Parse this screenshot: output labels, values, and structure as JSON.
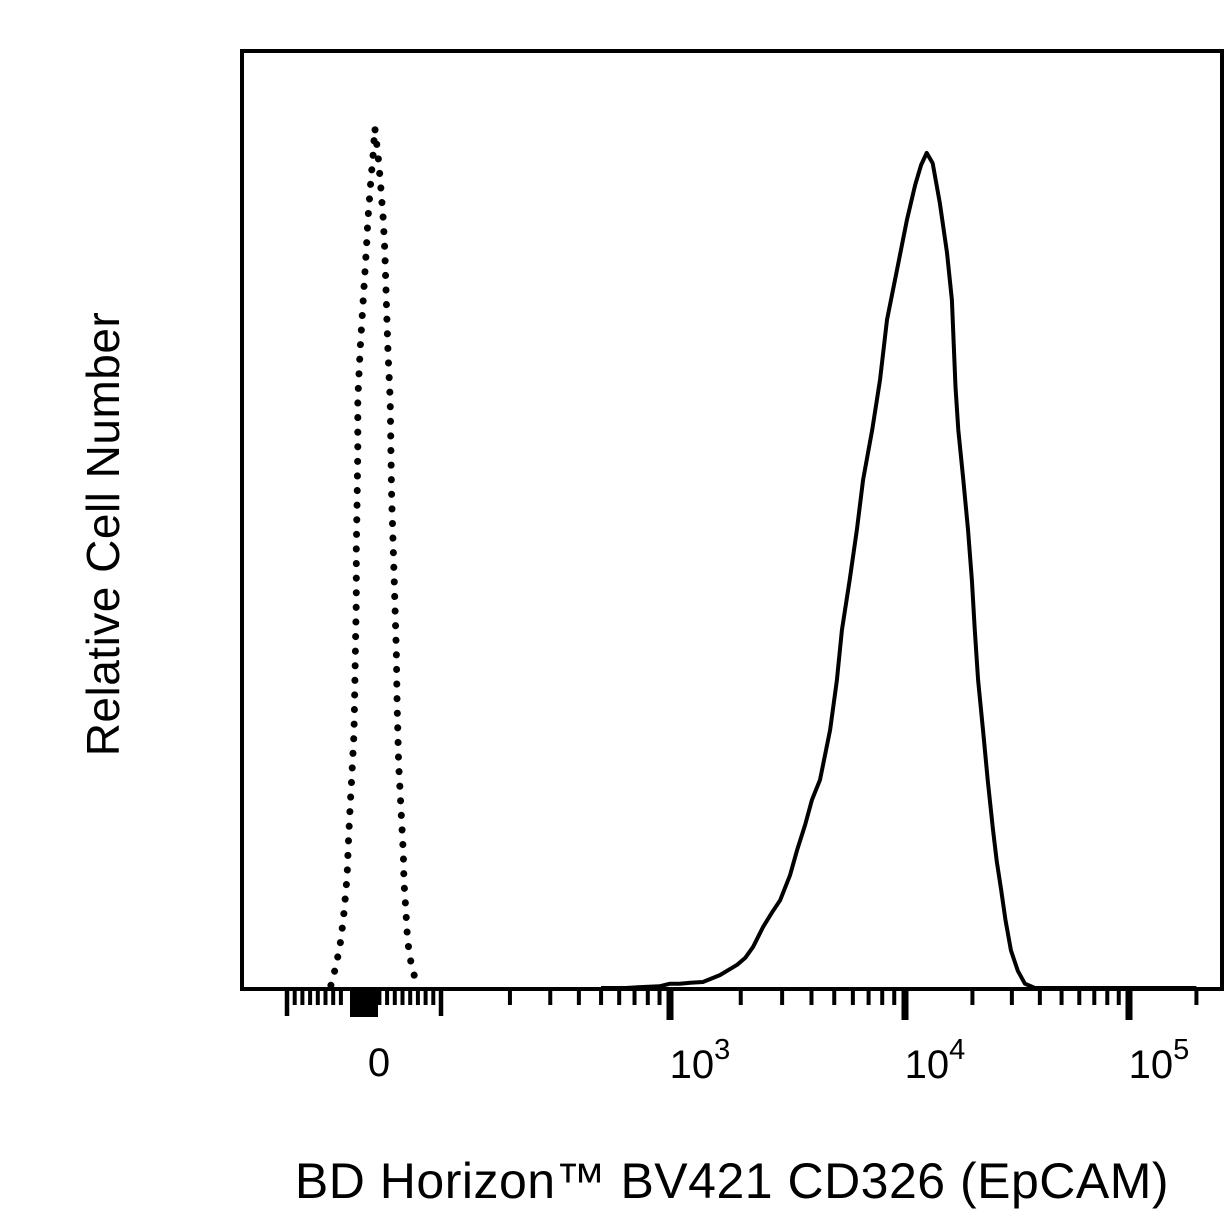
{
  "figure": {
    "background": "#ffffff",
    "foreground": "#000000"
  },
  "chart_data": {
    "type": "line",
    "subtype": "flow-cytometry-histogram",
    "title": "",
    "xlabel": "BD Horizon™ BV421 CD326 (EpCAM)",
    "ylabel": "Relative Cell Number",
    "x_scale": "biexponential-logicle",
    "x_axis": {
      "xlim": [
        -160,
        240000
      ],
      "labeled_ticks": [
        {
          "value": 0,
          "text": "0"
        },
        {
          "value": 1000,
          "base": "10",
          "exp": "3"
        },
        {
          "value": 10000,
          "base": "10",
          "exp": "4"
        },
        {
          "value": 100000,
          "base": "10",
          "exp": "5"
        }
      ],
      "medium_ticks": [
        -100,
        100
      ],
      "minor_ticks": [
        -90,
        -80,
        -70,
        -60,
        -50,
        -40,
        -30,
        20,
        30,
        40,
        50,
        60,
        70,
        80,
        90,
        200,
        300,
        400,
        500,
        600,
        700,
        800,
        900,
        2000,
        3000,
        4000,
        5000,
        6000,
        7000,
        8000,
        9000,
        20000,
        30000,
        40000,
        50000,
        60000,
        70000,
        80000,
        90000,
        200000
      ]
    },
    "y_axis": {
      "ticks": [],
      "range": [
        0,
        100
      ],
      "unit": "relative cell number (% of max)"
    },
    "series": [
      {
        "name": "dotted curve",
        "line_style": "dotted",
        "color": "#000000",
        "peak": {
          "x": 14,
          "y": 100
        },
        "points": [
          [
            -43,
            0.3
          ],
          [
            -36,
            2.7
          ],
          [
            -30,
            5.6
          ],
          [
            -26,
            8.8
          ],
          [
            -22,
            13.0
          ],
          [
            -20,
            17.5
          ],
          [
            -18,
            21.0
          ],
          [
            -16,
            24.4
          ],
          [
            -13,
            29.7
          ],
          [
            -12,
            35.0
          ],
          [
            -11,
            40.0
          ],
          [
            -10,
            45.1
          ],
          [
            -10,
            51.0
          ],
          [
            -9,
            56.7
          ],
          [
            -8,
            62.6
          ],
          [
            -8,
            68.4
          ],
          [
            -5,
            74.2
          ],
          [
            -1,
            80.0
          ],
          [
            3,
            85.8
          ],
          [
            5,
            89.3
          ],
          [
            9,
            94.0
          ],
          [
            12,
            97.0
          ],
          [
            14,
            100.0
          ],
          [
            18,
            97.0
          ],
          [
            21,
            94.0
          ],
          [
            25,
            89.3
          ],
          [
            27,
            85.8
          ],
          [
            29,
            80.0
          ],
          [
            31,
            74.2
          ],
          [
            34,
            68.4
          ],
          [
            35,
            62.6
          ],
          [
            36,
            56.7
          ],
          [
            38,
            51.0
          ],
          [
            40,
            45.1
          ],
          [
            42,
            39.3
          ],
          [
            43,
            33.1
          ],
          [
            45,
            26.2
          ],
          [
            47,
            22.7
          ],
          [
            49,
            19.2
          ],
          [
            51,
            15.7
          ],
          [
            52,
            12.3
          ],
          [
            54,
            9.5
          ],
          [
            56,
            6.5
          ],
          [
            58,
            4.5
          ],
          [
            62,
            2.5
          ],
          [
            69,
            0.3
          ]
        ]
      },
      {
        "name": "solid curve",
        "line_style": "solid",
        "color": "#000000",
        "peak": {
          "x": 12500,
          "y": 97
        },
        "points": [
          [
            500,
            0
          ],
          [
            640,
            0
          ],
          [
            740,
            0.1
          ],
          [
            900,
            0.2
          ],
          [
            1000,
            0.5
          ],
          [
            1100,
            0.5
          ],
          [
            1220,
            0.6
          ],
          [
            1380,
            0.7
          ],
          [
            1630,
            1.5
          ],
          [
            1930,
            2.7
          ],
          [
            2090,
            3.5
          ],
          [
            2260,
            4.8
          ],
          [
            2490,
            7.1
          ],
          [
            2720,
            8.8
          ],
          [
            2940,
            10.2
          ],
          [
            3240,
            13.1
          ],
          [
            3470,
            16.0
          ],
          [
            3760,
            19.0
          ],
          [
            4020,
            21.9
          ],
          [
            4350,
            24.2
          ],
          [
            4800,
            30.0
          ],
          [
            5130,
            35.8
          ],
          [
            5390,
            41.6
          ],
          [
            5810,
            47.4
          ],
          [
            6240,
            53.3
          ],
          [
            6630,
            59.1
          ],
          [
            7250,
            64.9
          ],
          [
            7830,
            70.7
          ],
          [
            8380,
            77.7
          ],
          [
            9250,
            83.5
          ],
          [
            10200,
            89.3
          ],
          [
            11100,
            93.4
          ],
          [
            11800,
            95.7
          ],
          [
            12500,
            97.1
          ],
          [
            13300,
            95.9
          ],
          [
            14300,
            91.3
          ],
          [
            15400,
            85.5
          ],
          [
            16200,
            80.0
          ],
          [
            16800,
            69.9
          ],
          [
            17300,
            64.9
          ],
          [
            18200,
            59.1
          ],
          [
            19100,
            53.3
          ],
          [
            19900,
            47.4
          ],
          [
            20500,
            41.6
          ],
          [
            21200,
            35.8
          ],
          [
            22300,
            30.0
          ],
          [
            23400,
            24.2
          ],
          [
            24700,
            18.4
          ],
          [
            25700,
            14.7
          ],
          [
            26800,
            11.6
          ],
          [
            28100,
            7.9
          ],
          [
            29700,
            4.4
          ],
          [
            31900,
            2.0
          ],
          [
            34300,
            0.5
          ],
          [
            38000,
            0
          ],
          [
            200000,
            0
          ]
        ]
      }
    ]
  }
}
